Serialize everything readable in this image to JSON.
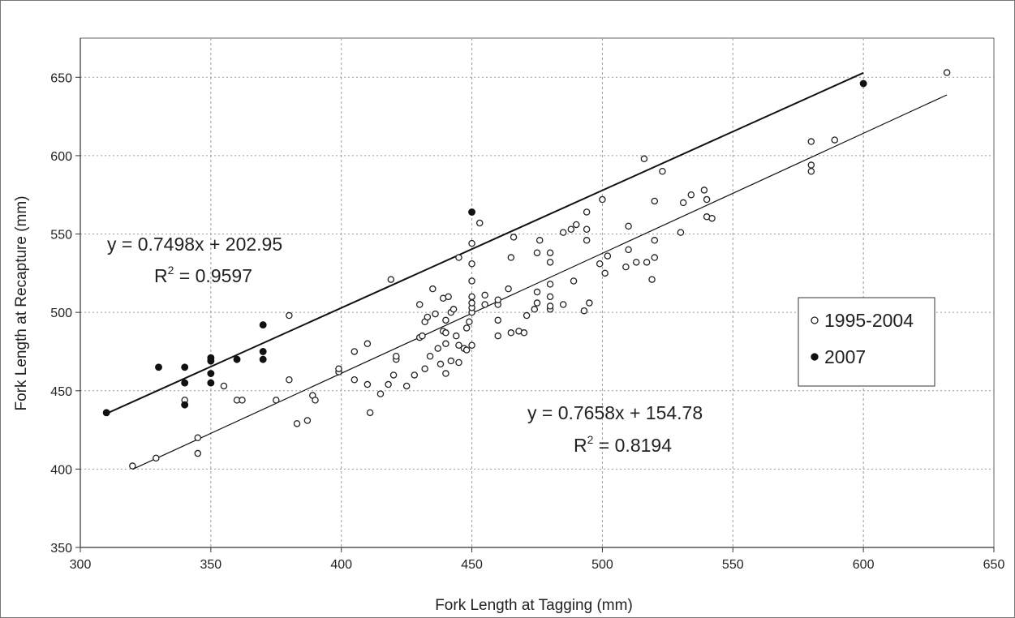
{
  "chart_data": {
    "type": "scatter",
    "xlabel": "Fork Length at Tagging (mm)",
    "ylabel": "Fork Length at Recapture (mm)",
    "xlim": [
      300,
      650
    ],
    "ylim": [
      350,
      675
    ],
    "x_ticks": [
      300,
      350,
      400,
      450,
      500,
      550,
      600,
      650
    ],
    "y_ticks": [
      350,
      400,
      450,
      500,
      550,
      600,
      650
    ],
    "grid": true,
    "legend_position": "right",
    "series": [
      {
        "name": "1995-2004",
        "marker": "open-circle",
        "color": "#222222",
        "points": [
          [
            320,
            402
          ],
          [
            329,
            407
          ],
          [
            340,
            441
          ],
          [
            340,
            444
          ],
          [
            345,
            410
          ],
          [
            345,
            420
          ],
          [
            355,
            453
          ],
          [
            360,
            444
          ],
          [
            362,
            444
          ],
          [
            375,
            444
          ],
          [
            380,
            457
          ],
          [
            380,
            498
          ],
          [
            383,
            429
          ],
          [
            387,
            431
          ],
          [
            389,
            447
          ],
          [
            390,
            444
          ],
          [
            399,
            462
          ],
          [
            399,
            464
          ],
          [
            405,
            457
          ],
          [
            405,
            475
          ],
          [
            410,
            454
          ],
          [
            410,
            480
          ],
          [
            411,
            436
          ],
          [
            415,
            448
          ],
          [
            418,
            454
          ],
          [
            419,
            521
          ],
          [
            420,
            460
          ],
          [
            421,
            470
          ],
          [
            421,
            472
          ],
          [
            425,
            453
          ],
          [
            428,
            460
          ],
          [
            430,
            484
          ],
          [
            430,
            505
          ],
          [
            431,
            485
          ],
          [
            432,
            464
          ],
          [
            432,
            494
          ],
          [
            433,
            497
          ],
          [
            434,
            472
          ],
          [
            435,
            515
          ],
          [
            436,
            499
          ],
          [
            437,
            477
          ],
          [
            438,
            467
          ],
          [
            439,
            488
          ],
          [
            439,
            509
          ],
          [
            440,
            461
          ],
          [
            440,
            480
          ],
          [
            440,
            487
          ],
          [
            440,
            495
          ],
          [
            441,
            510
          ],
          [
            442,
            469
          ],
          [
            442,
            500
          ],
          [
            443,
            502
          ],
          [
            444,
            485
          ],
          [
            445,
            468
          ],
          [
            445,
            479
          ],
          [
            445,
            535
          ],
          [
            447,
            477
          ],
          [
            448,
            476
          ],
          [
            448,
            490
          ],
          [
            449,
            494
          ],
          [
            450,
            479
          ],
          [
            450,
            500
          ],
          [
            450,
            503
          ],
          [
            450,
            506
          ],
          [
            450,
            510
          ],
          [
            450,
            520
          ],
          [
            450,
            531
          ],
          [
            450,
            544
          ],
          [
            453,
            557
          ],
          [
            455,
            505
          ],
          [
            455,
            511
          ],
          [
            460,
            485
          ],
          [
            460,
            495
          ],
          [
            460,
            505
          ],
          [
            460,
            508
          ],
          [
            464,
            515
          ],
          [
            465,
            487
          ],
          [
            465,
            535
          ],
          [
            466,
            548
          ],
          [
            468,
            488
          ],
          [
            470,
            487
          ],
          [
            471,
            498
          ],
          [
            474,
            502
          ],
          [
            475,
            506
          ],
          [
            475,
            513
          ],
          [
            475,
            538
          ],
          [
            476,
            546
          ],
          [
            480,
            502
          ],
          [
            480,
            504
          ],
          [
            480,
            510
          ],
          [
            480,
            518
          ],
          [
            480,
            532
          ],
          [
            480,
            538
          ],
          [
            485,
            505
          ],
          [
            485,
            551
          ],
          [
            488,
            553
          ],
          [
            489,
            520
          ],
          [
            490,
            556
          ],
          [
            493,
            501
          ],
          [
            494,
            546
          ],
          [
            494,
            553
          ],
          [
            494,
            564
          ],
          [
            495,
            506
          ],
          [
            499,
            531
          ],
          [
            500,
            572
          ],
          [
            501,
            525
          ],
          [
            502,
            536
          ],
          [
            509,
            529
          ],
          [
            510,
            540
          ],
          [
            510,
            555
          ],
          [
            513,
            532
          ],
          [
            516,
            598
          ],
          [
            517,
            532
          ],
          [
            519,
            521
          ],
          [
            520,
            535
          ],
          [
            520,
            546
          ],
          [
            520,
            571
          ],
          [
            523,
            590
          ],
          [
            530,
            551
          ],
          [
            531,
            570
          ],
          [
            534,
            575
          ],
          [
            539,
            578
          ],
          [
            540,
            561
          ],
          [
            540,
            572
          ],
          [
            542,
            560
          ],
          [
            580,
            590
          ],
          [
            580,
            594
          ],
          [
            580,
            609
          ],
          [
            589,
            610
          ],
          [
            632,
            653
          ]
        ]
      },
      {
        "name": "2007",
        "marker": "filled-circle",
        "color": "#111111",
        "points": [
          [
            310,
            436
          ],
          [
            330,
            465
          ],
          [
            340,
            441
          ],
          [
            340,
            455
          ],
          [
            340,
            465
          ],
          [
            350,
            455
          ],
          [
            350,
            461
          ],
          [
            350,
            469
          ],
          [
            350,
            471
          ],
          [
            360,
            470
          ],
          [
            370,
            470
          ],
          [
            370,
            475
          ],
          [
            370,
            492
          ],
          [
            450,
            564
          ],
          [
            600,
            646
          ]
        ]
      }
    ],
    "trendlines": [
      {
        "series": "2007",
        "slope": 0.7498,
        "intercept": 202.95,
        "x_range": [
          310,
          600
        ],
        "equation": "y = 0.7498x + 202.95",
        "r2_prefix": "R",
        "r2_sup": "2",
        "r2_value": " = 0.9597"
      },
      {
        "series": "1995-2004",
        "slope": 0.7658,
        "intercept": 154.78,
        "x_range": [
          320,
          632
        ],
        "equation": "y = 0.7658x + 154.78",
        "r2_prefix": "R",
        "r2_sup": "2",
        "r2_value": " = 0.8194"
      }
    ]
  }
}
